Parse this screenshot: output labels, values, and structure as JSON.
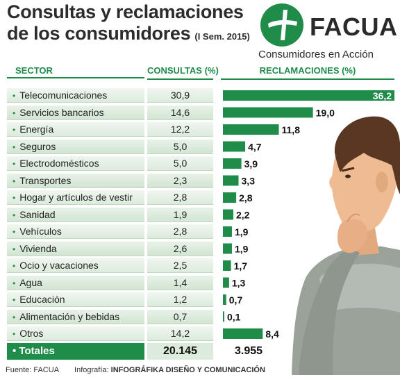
{
  "header": {
    "title_line1": "Consultas y reclamaciones",
    "title_line2": "de los consumidores",
    "subtitle": "(I Sem. 2015)"
  },
  "logo": {
    "name": "FACUA",
    "tagline": "Consumidores en Acción"
  },
  "columns": {
    "sector": "SECTOR",
    "consultas": "CONSULTAS (%)",
    "reclamaciones": "RECLAMACIONES (%)"
  },
  "chart_data": {
    "type": "bar",
    "title": "Consultas y reclamaciones de los consumidores",
    "subtitle": "(I Sem. 2015)",
    "categories": [
      "Telecomunicaciones",
      "Servicios bancarios",
      "Energía",
      "Seguros",
      "Electrodomésticos",
      "Transportes",
      "Hogar y artículos de vestir",
      "Sanidad",
      "Vehículos",
      "Vivienda",
      "Ocio y vacaciones",
      "Agua",
      "Educación",
      "Alimentación y bebidas",
      "Otros"
    ],
    "consultas_label": [
      "30,9",
      "14,6",
      "12,2",
      "5,0",
      "5,0",
      "2,3",
      "2,8",
      "1,9",
      "2,8",
      "2,6",
      "2,5",
      "1,4",
      "1,2",
      "0,7",
      "14,2"
    ],
    "series": [
      {
        "name": "RECLAMACIONES (%)",
        "values": [
          36.2,
          19.0,
          11.8,
          4.7,
          3.9,
          3.3,
          2.8,
          2.2,
          1.9,
          1.9,
          1.7,
          1.3,
          0.7,
          0.1,
          8.4
        ],
        "labels": [
          "36,2",
          "19,0",
          "11,8",
          "4,7",
          "3,9",
          "3,3",
          "2,8",
          "2,2",
          "1,9",
          "1,9",
          "1,7",
          "1,3",
          "0,7",
          "0,1",
          "8,4"
        ]
      }
    ],
    "xlim": [
      0,
      36.2
    ],
    "bar_color": "#1f8c4a"
  },
  "totals": {
    "label": "Totales",
    "consultas": "20.145",
    "reclamaciones": "3.955"
  },
  "footer": {
    "source_label": "Fuente: FACUA",
    "credit_prefix": "Infografía:",
    "credit_name": "INFOGRÁFIKA DISEÑO Y COMUNICACIÓN"
  },
  "colors": {
    "accent": "#1f8c4a",
    "row_bg": "#dcebdc",
    "title": "#2c2c2c"
  }
}
